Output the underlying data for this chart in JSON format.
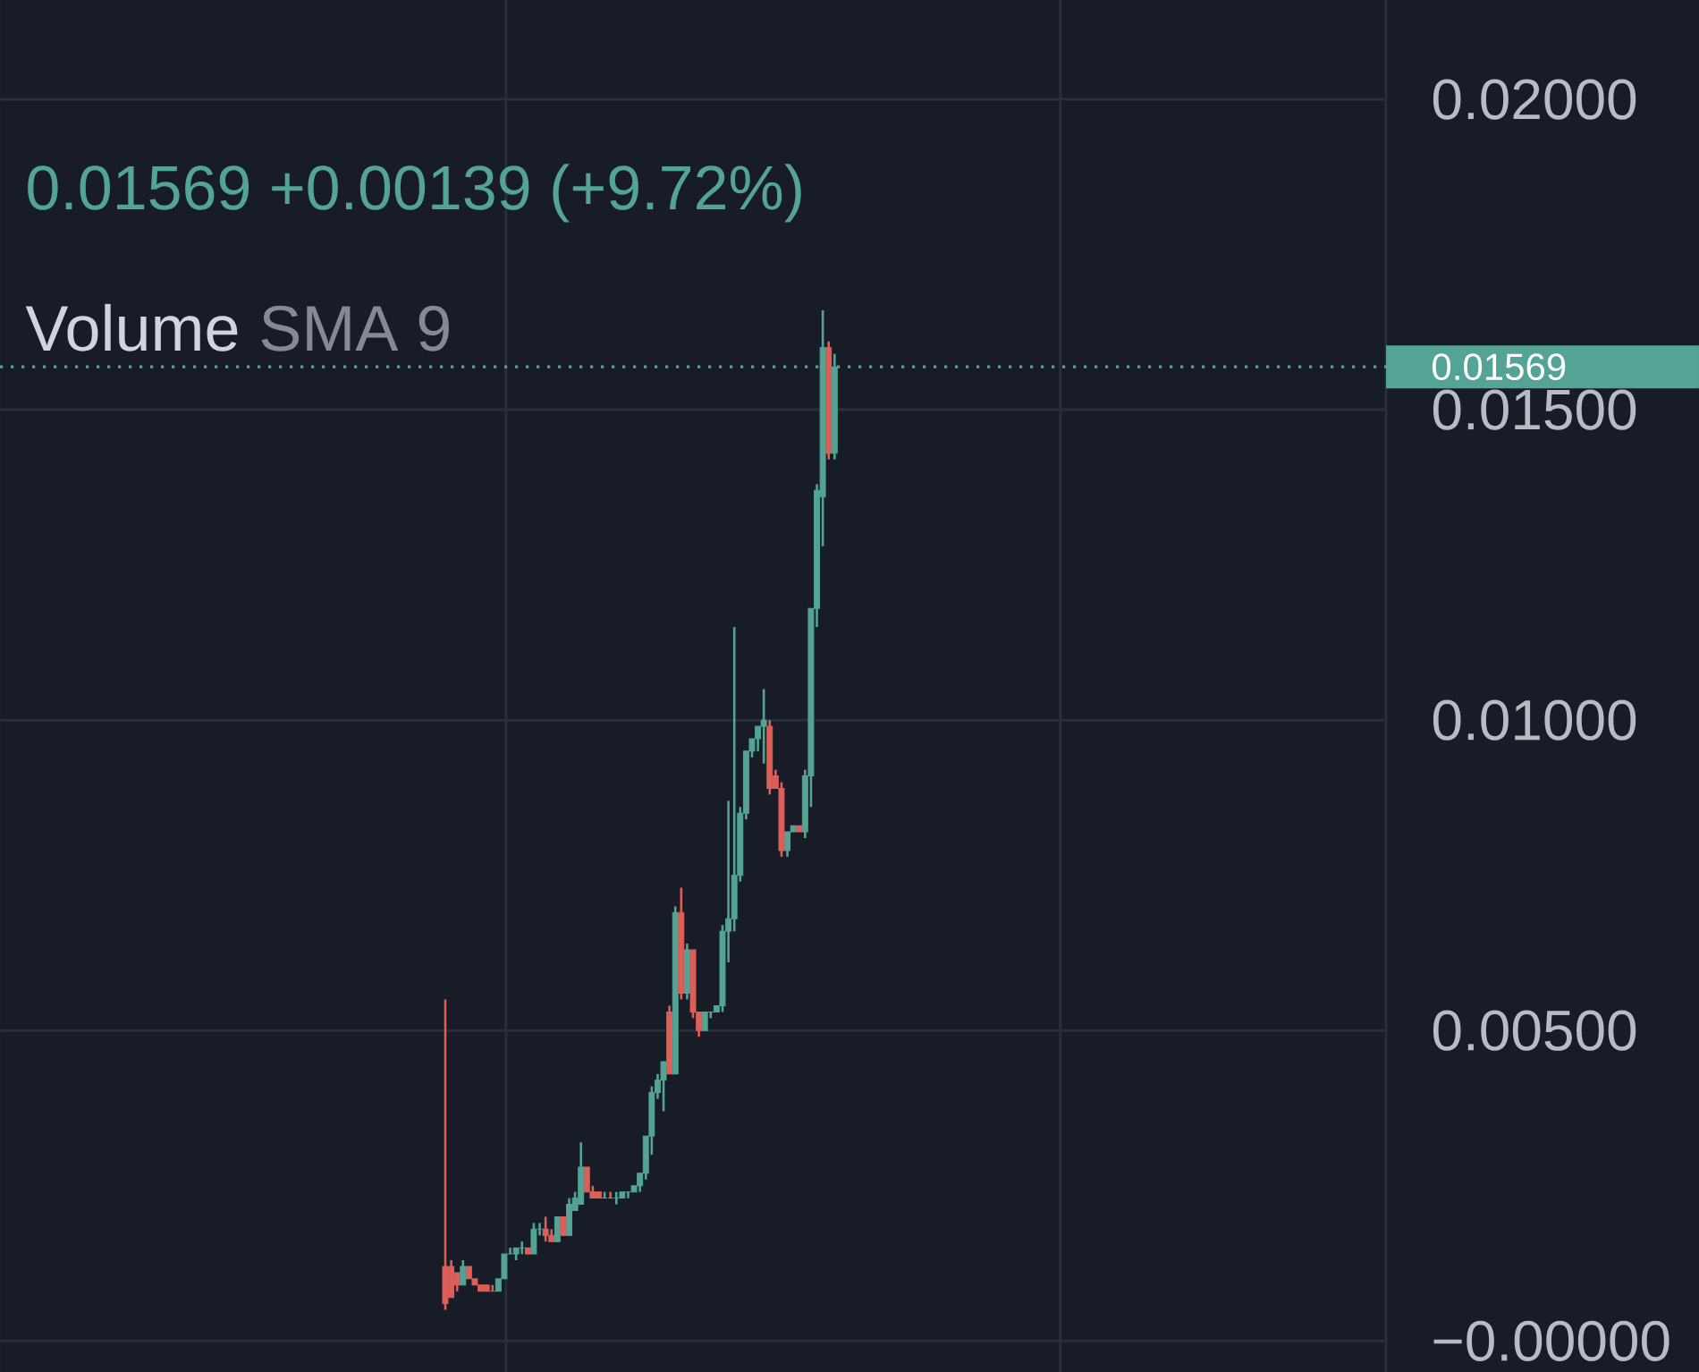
{
  "chart_data": {
    "type": "candlestick",
    "subtitle": "0.01569 +0.00139 (+9.72%)",
    "annotations": [
      "Volume",
      "SMA 9"
    ],
    "categories": [
      null,
      null,
      null,
      null,
      null,
      null,
      null,
      null,
      null,
      null,
      null,
      null,
      null,
      null,
      null,
      null,
      null,
      null,
      null,
      null,
      null,
      null,
      null,
      null,
      null,
      null,
      null,
      null,
      null,
      null,
      null,
      null,
      null,
      null,
      null,
      null,
      null,
      null,
      null,
      null,
      null,
      null,
      null,
      null,
      null,
      null,
      null,
      null,
      null,
      null,
      null,
      null,
      null,
      null,
      null,
      null,
      null,
      null,
      null,
      null,
      null,
      null,
      null,
      null,
      null,
      null,
      null,
      null,
      null,
      null,
      null,
      null,
      null,
      null,
      null,
      null,
      null,
      null,
      null,
      null,
      null,
      null,
      null,
      null,
      null,
      null,
      null,
      null,
      null,
      null,
      null,
      null,
      null,
      null,
      null,
      null,
      null,
      null,
      null,
      null,
      null,
      null,
      null,
      null,
      null,
      null,
      null,
      null,
      null,
      null,
      null,
      null,
      null,
      null,
      null,
      null,
      null,
      null,
      null,
      null,
      null,
      null,
      null,
      null,
      null,
      null,
      null,
      null,
      null,
      null,
      null,
      null,
      null,
      null,
      null,
      null,
      null,
      null,
      null,
      null,
      null,
      null,
      null,
      null,
      null,
      null,
      null,
      null,
      null,
      null,
      null,
      null,
      null,
      null,
      null,
      null,
      null,
      null,
      null,
      null,
      null,
      null,
      null,
      null,
      null,
      null,
      null,
      null,
      null,
      null,
      null,
      null,
      null,
      null,
      null,
      null,
      null,
      null,
      null,
      null,
      null,
      null,
      null,
      null,
      null,
      null,
      null,
      null,
      null,
      null,
      null,
      null,
      null,
      null,
      null,
      null,
      null,
      null,
      null,
      null,
      null,
      null,
      null,
      null,
      null,
      null,
      null,
      null,
      null,
      null,
      null,
      null,
      null,
      null,
      null,
      null,
      null,
      null,
      null,
      null,
      null,
      null,
      null,
      null,
      null,
      null,
      null,
      null,
      null,
      null,
      null,
      null,
      null,
      null,
      null
    ],
    "ohlc": [
      null,
      null,
      null,
      null,
      null,
      null,
      null,
      null,
      null,
      null,
      null,
      null,
      null,
      null,
      null,
      null,
      null,
      null,
      null,
      null,
      null,
      null,
      null,
      null,
      null,
      null,
      null,
      null,
      null,
      null,
      null,
      null,
      null,
      null,
      null,
      null,
      null,
      null,
      null,
      null,
      null,
      null,
      null,
      null,
      null,
      null,
      null,
      null,
      null,
      null,
      null,
      null,
      null,
      null,
      null,
      null,
      null,
      null,
      null,
      null,
      null,
      null,
      null,
      null,
      null,
      null,
      null,
      null,
      null,
      null,
      null,
      null,
      null,
      null,
      null,
      [
        0.0012,
        0.0055,
        0.0005,
        0.0006
      ],
      [
        0.0012,
        0.0013,
        0.0007,
        0.0007
      ],
      [
        0.0011,
        0.0011,
        0.0008,
        0.0009
      ],
      [
        0.0009,
        0.0013,
        0.0009,
        0.0012
      ],
      [
        0.0012,
        0.0012,
        0.001,
        0.001
      ],
      [
        0.001,
        0.001,
        0.0009,
        0.0009
      ],
      [
        0.0009,
        0.0009,
        0.0008,
        0.0008
      ],
      [
        0.0009,
        0.0009,
        0.0008,
        0.0008
      ],
      [
        0.0008,
        0.0009,
        0.0008,
        0.0008
      ],
      [
        0.0008,
        0.001,
        0.0008,
        0.001
      ],
      [
        0.001,
        0.0014,
        0.001,
        0.0014
      ],
      [
        0.0014,
        0.0015,
        0.0014,
        0.0014
      ],
      [
        0.0014,
        0.0015,
        0.0013,
        0.0015
      ],
      [
        0.0015,
        0.0016,
        0.0014,
        0.0015
      ],
      [
        0.0015,
        0.0015,
        0.0014,
        0.0014
      ],
      [
        0.0014,
        0.0019,
        0.0014,
        0.0018
      ],
      [
        0.0018,
        0.0019,
        0.0017,
        0.0018
      ],
      [
        0.0018,
        0.002,
        0.0016,
        0.0017
      ],
      [
        0.0017,
        0.0018,
        0.0016,
        0.0016
      ],
      [
        0.0016,
        0.002,
        0.0016,
        0.002
      ],
      [
        0.002,
        0.002,
        0.0017,
        0.0017
      ],
      [
        0.0017,
        0.0023,
        0.0017,
        0.0022
      ],
      [
        0.0021,
        0.0024,
        0.0021,
        0.0023
      ],
      [
        0.0022,
        0.0032,
        0.0022,
        0.0028
      ],
      [
        0.0028,
        0.0028,
        0.0024,
        0.0024
      ],
      [
        0.0024,
        0.0025,
        0.0023,
        0.0023
      ],
      [
        0.0024,
        0.0024,
        0.0023,
        0.0023
      ],
      [
        0.0023,
        0.0024,
        0.0023,
        0.0023
      ],
      [
        0.0023,
        0.0024,
        0.0023,
        0.0023
      ],
      [
        0.0023,
        0.0024,
        0.0022,
        0.0023
      ],
      [
        0.0023,
        0.0024,
        0.0023,
        0.0024
      ],
      [
        0.0024,
        0.0024,
        0.0023,
        0.0024
      ],
      [
        0.0024,
        0.0025,
        0.0024,
        0.0025
      ],
      [
        0.0025,
        0.0027,
        0.0024,
        0.0027
      ],
      [
        0.0027,
        0.0033,
        0.0026,
        0.0033
      ],
      [
        0.0033,
        0.0041,
        0.003,
        0.004
      ],
      [
        0.004,
        0.0043,
        0.0039,
        0.0042
      ],
      [
        0.0042,
        0.0045,
        0.0037,
        0.0045
      ],
      [
        0.0053,
        0.0054,
        0.0043,
        0.0043
      ],
      [
        0.0043,
        0.007,
        0.0043,
        0.0069
      ],
      [
        0.0069,
        0.0073,
        0.0055,
        0.0056
      ],
      [
        0.0056,
        0.0064,
        0.0055,
        0.0063
      ],
      [
        0.0063,
        0.0063,
        0.0052,
        0.0053
      ],
      [
        0.0053,
        0.0053,
        0.0049,
        0.005
      ],
      [
        0.005,
        0.0053,
        0.005,
        0.0053
      ],
      [
        0.0053,
        0.0053,
        0.0052,
        0.0053
      ],
      [
        0.0053,
        0.0054,
        0.0053,
        0.0054
      ],
      [
        0.0054,
        0.0067,
        0.0053,
        0.0066
      ],
      [
        0.0066,
        0.0087,
        0.0061,
        0.0068
      ],
      [
        0.0068,
        0.0115,
        0.0066,
        0.0075
      ],
      [
        0.0075,
        0.0086,
        0.0074,
        0.0085
      ],
      [
        0.0085,
        0.0095,
        0.0084,
        0.0095
      ],
      [
        0.0095,
        0.0097,
        0.0094,
        0.0097
      ],
      [
        0.0097,
        0.0099,
        0.0095,
        0.0099
      ],
      [
        0.0099,
        0.0105,
        0.0093,
        0.01
      ],
      [
        0.0099,
        0.01,
        0.0088,
        0.0089
      ],
      [
        0.0091,
        0.0092,
        0.0089,
        0.0089
      ],
      [
        0.0089,
        0.009,
        0.0078,
        0.0079
      ],
      [
        0.0079,
        0.0082,
        0.0078,
        0.0082
      ],
      [
        0.0082,
        0.0083,
        0.0082,
        0.0083
      ],
      [
        0.0083,
        0.0083,
        0.0082,
        0.0082
      ],
      [
        0.0082,
        0.0092,
        0.0081,
        0.0091
      ],
      [
        0.0091,
        0.0118,
        0.0086,
        0.0118
      ],
      [
        0.0118,
        0.0138,
        0.0115,
        0.0137
      ],
      [
        0.0136,
        0.0166,
        0.0128,
        0.016
      ],
      [
        0.016,
        0.0161,
        0.0142,
        0.0143
      ],
      [
        0.0143,
        0.0159,
        0.0142,
        0.01569
      ],
      null,
      null,
      null,
      null,
      null,
      null,
      null,
      null,
      null,
      null,
      null,
      null,
      null,
      null,
      null,
      null,
      null,
      null,
      null,
      null,
      null,
      null,
      null,
      null,
      null,
      null,
      null,
      null,
      null,
      null,
      null,
      null,
      null,
      null,
      null,
      null,
      null,
      null,
      null,
      null,
      null,
      null,
      null,
      null,
      null,
      null,
      null,
      null,
      null,
      null,
      null,
      null,
      null,
      null,
      null,
      null,
      null,
      null,
      null,
      null,
      null,
      null,
      null,
      null,
      null,
      null,
      null,
      null,
      null,
      null,
      null,
      null,
      null,
      null,
      null,
      null,
      null,
      null,
      null,
      null,
      null,
      null,
      null,
      null,
      null,
      null,
      null,
      null,
      null,
      null,
      null,
      null,
      null
    ],
    "colors": [
      null,
      null,
      null,
      null,
      null,
      null,
      null,
      null,
      null,
      null,
      null,
      null,
      null,
      null,
      null,
      null,
      null,
      null,
      null,
      null,
      null,
      null,
      null,
      null,
      null,
      null,
      null,
      null,
      null,
      null,
      null,
      null,
      null,
      null,
      null,
      null,
      null,
      null,
      null,
      null,
      null,
      null,
      null,
      null,
      null,
      null,
      null,
      null,
      null,
      null,
      null,
      null,
      null,
      null,
      null,
      null,
      null,
      null,
      null,
      null,
      null,
      null,
      null,
      null,
      null,
      null,
      null,
      null,
      null,
      null,
      null,
      null,
      null,
      null,
      null,
      "#dc5f58",
      "#dc5f58",
      "#dc5f58",
      "#53a495",
      "#dc5f58",
      "#dc5f58",
      "#dc5f58",
      "#dc5f58",
      "#dc5f58",
      "#53a495",
      "#53a495",
      "#53a495",
      "#53a495",
      "#53a495",
      "#dc5f58",
      "#53a495",
      "#53a495",
      "#dc5f58",
      "#dc5f58",
      "#53a495",
      "#dc5f58",
      "#53a495",
      "#53a495",
      "#53a495",
      "#dc5f58",
      "#dc5f58",
      "#dc5f58",
      "#53a495",
      "#dc5f58",
      "#53a495",
      "#53a495",
      "#53a495",
      "#53a495",
      "#53a495",
      "#53a495",
      "#53a495",
      "#53a495",
      "#53a495",
      "#dc5f58",
      "#53a495",
      "#dc5f58",
      "#53a495",
      "#dc5f58",
      "#dc5f58",
      "#53a495",
      "#53a495",
      "#53a495",
      "#53a495",
      "#53a495",
      "#53a495",
      "#53a495",
      "#53a495",
      "#53a495",
      "#53a495",
      "#53a495",
      "#dc5f58",
      "#dc5f58",
      "#dc5f58",
      "#53a495",
      "#53a495",
      "#dc5f58",
      "#53a495",
      "#53a495",
      "#53a495",
      "#53a495",
      "#dc5f58",
      "#53a495",
      null,
      null,
      null,
      null,
      null,
      null,
      null,
      null,
      null,
      null,
      null,
      null,
      null,
      null,
      null,
      null,
      null,
      null,
      null,
      null,
      null,
      null,
      null,
      null,
      null,
      null,
      null,
      null,
      null,
      null,
      null,
      null,
      null,
      null,
      null,
      null,
      null,
      null,
      null,
      null,
      null,
      null,
      null,
      null,
      null,
      null,
      null,
      null,
      null,
      null,
      null,
      null,
      null,
      null,
      null,
      null,
      null,
      null,
      null,
      null,
      null,
      null,
      null,
      null,
      null,
      null,
      null,
      null,
      null,
      null,
      null,
      null,
      null,
      null,
      null,
      null,
      null,
      null,
      null,
      null,
      null,
      null,
      null,
      null,
      null,
      null,
      null,
      null,
      null,
      null,
      null,
      null,
      null
    ],
    "ylim": [
      -0.0005,
      0.0216
    ],
    "yticks": [
      {
        "value": 0,
        "label": "−0.00000"
      },
      {
        "value": 0.005,
        "label": "0.00500"
      },
      {
        "value": 0.01,
        "label": "0.01000"
      },
      {
        "value": 0.015,
        "label": "0.01500"
      },
      {
        "value": 0.02,
        "label": "0.02000"
      }
    ],
    "grid": true,
    "ref_lines": [
      {
        "axis": "y",
        "value": 0.01569,
        "label": "0.01569",
        "color": "#53a495",
        "line_style": "dotted"
      }
    ]
  }
}
